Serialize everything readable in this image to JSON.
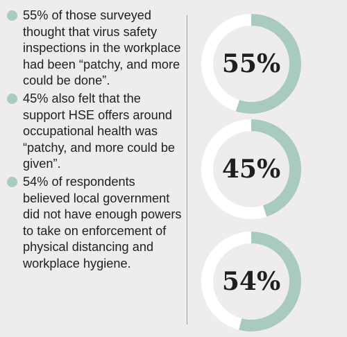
{
  "bullets": [
    {
      "text": "55% of those surveyed thought that virus safety inspections in the workplace had been “patchy, and more could be done”."
    },
    {
      "text": "45% also felt that the support HSE offers around occupational health was “patchy, and more could be given”."
    },
    {
      "text": "54% of respondents believed local government did not have enough powers to take on enforcement of physical distancing and workplace hygiene."
    }
  ],
  "chart_data": {
    "type": "pie",
    "variant": "donut",
    "charts": [
      {
        "value": 55,
        "label": "55%"
      },
      {
        "value": 45,
        "label": "45%"
      },
      {
        "value": 54,
        "label": "54%"
      }
    ],
    "max": 100,
    "colors": {
      "fill": "#a9cbbf",
      "track": "#ffffff",
      "dot": "#a9cbbf",
      "divider": "#9c9c9c"
    }
  }
}
